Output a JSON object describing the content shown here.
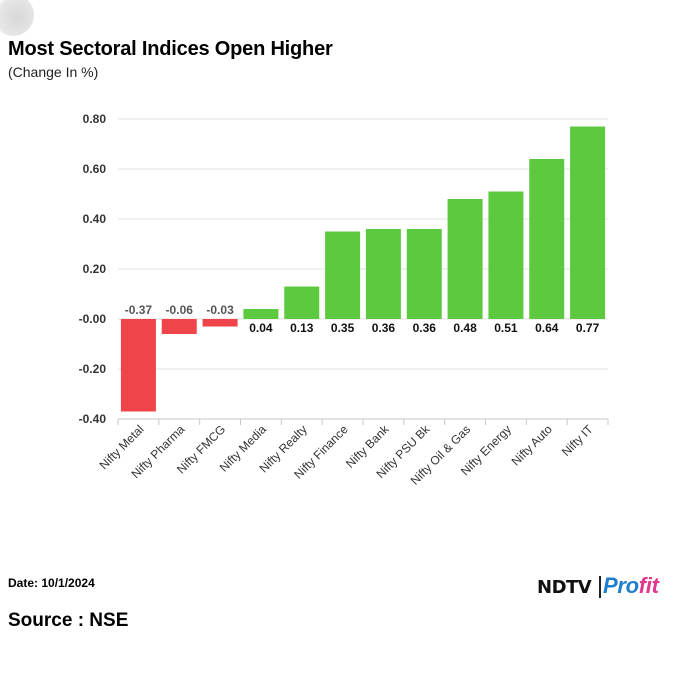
{
  "header": {
    "title": "Most Sectoral Indices Open Higher",
    "subtitle": "(Change In %)"
  },
  "footer": {
    "date_label": "Date:",
    "date_value": "10/1/2024",
    "source": "Source : NSE"
  },
  "logo": {
    "ndtv": "NDTV",
    "profit_a": "Pro",
    "profit_b": "fit"
  },
  "colors": {
    "positive": "#5cc93f",
    "negative": "#f0444b",
    "grid": "#e0e0e0",
    "axis": "#c8c8c8"
  },
  "chart_data": {
    "type": "bar",
    "title": "Most Sectoral Indices Open Higher",
    "subtitle": "(Change In %)",
    "xlabel": "",
    "ylabel": "",
    "ylim": [
      -0.4,
      0.8
    ],
    "yticks": [
      0.8,
      0.6,
      0.4,
      0.2,
      0.0,
      -0.2,
      -0.4
    ],
    "ytick_labels": [
      "0.80",
      "0.60",
      "0.40",
      "0.20",
      "-0.00",
      "-0.20",
      "-0.40"
    ],
    "grid": true,
    "legend": "none",
    "categories": [
      "Nifty Metal",
      "Nifty Pharma",
      "Nifty FMCG",
      "Nifty Media",
      "Nifty Realty",
      "Nifty Finance",
      "Nifty Bank",
      "Nifty PSU Bk",
      "Nifty Oil & Gas",
      "Nifty Energy",
      "Nifty Auto",
      "Nifty IT"
    ],
    "values": [
      -0.37,
      -0.06,
      -0.03,
      0.04,
      0.13,
      0.35,
      0.36,
      0.36,
      0.48,
      0.51,
      0.64,
      0.77
    ],
    "data_labels": [
      "-0.37",
      "-0.06",
      "-0.03",
      "0.04",
      "0.13",
      "0.35",
      "0.36",
      "0.36",
      "0.48",
      "0.51",
      "0.64",
      "0.77"
    ]
  }
}
